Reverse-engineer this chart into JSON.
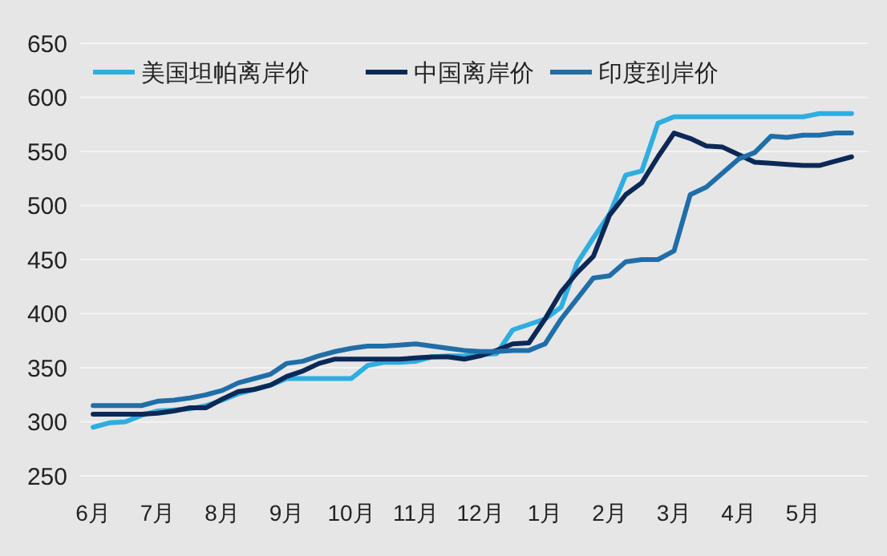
{
  "chart_data": {
    "type": "line",
    "ylim": [
      250,
      650
    ],
    "yticks": [
      250,
      300,
      350,
      400,
      450,
      500,
      550,
      600,
      650
    ],
    "categories": [
      "6月",
      null,
      null,
      null,
      "7月",
      null,
      null,
      null,
      "8月",
      null,
      null,
      null,
      "9月",
      null,
      null,
      null,
      "10月",
      null,
      null,
      null,
      "11月",
      null,
      null,
      null,
      "12月",
      null,
      null,
      null,
      "1月",
      null,
      null,
      null,
      "2月",
      null,
      null,
      null,
      "3月",
      null,
      null,
      null,
      "4月",
      null,
      null,
      null,
      "5月",
      null,
      null,
      null
    ],
    "grid": "y",
    "legend": "top left",
    "line_style": "solid",
    "marker": "none",
    "series": [
      {
        "name": "美国坦帕离岸价",
        "color": "#2eaee0",
        "values": [
          295,
          299,
          300,
          306,
          310,
          311,
          312,
          315,
          320,
          326,
          330,
          334,
          340,
          340,
          340,
          340,
          340,
          352,
          355,
          355,
          356,
          360,
          361,
          361,
          362,
          363,
          385,
          390,
          395,
          406,
          447,
          470,
          492,
          528,
          532,
          576,
          582,
          582,
          582,
          582,
          582,
          582,
          582,
          582,
          582,
          585,
          585,
          585
        ]
      },
      {
        "name": "中国离岸价",
        "color": "#0c2857",
        "values": [
          307,
          307,
          307,
          307,
          308,
          310,
          313,
          313,
          321,
          328,
          330,
          334,
          342,
          347,
          354,
          358,
          358,
          358,
          358,
          358,
          359,
          360,
          360,
          358,
          361,
          366,
          372,
          373,
          395,
          420,
          438,
          453,
          491,
          510,
          521,
          545,
          567,
          562,
          555,
          554,
          547,
          540,
          539,
          538,
          537,
          537,
          541,
          545
        ]
      },
      {
        "name": "印度到岸价",
        "color": "#1f6ea8",
        "values": [
          315,
          315,
          315,
          315,
          319,
          320,
          322,
          325,
          329,
          336,
          340,
          344,
          354,
          356,
          361,
          365,
          368,
          370,
          370,
          371,
          372,
          370,
          368,
          366,
          365,
          365,
          366,
          366,
          372,
          395,
          414,
          433,
          435,
          448,
          450,
          450,
          458,
          510,
          517,
          530,
          543,
          549,
          564,
          563,
          565,
          565,
          567,
          567
        ]
      }
    ]
  }
}
